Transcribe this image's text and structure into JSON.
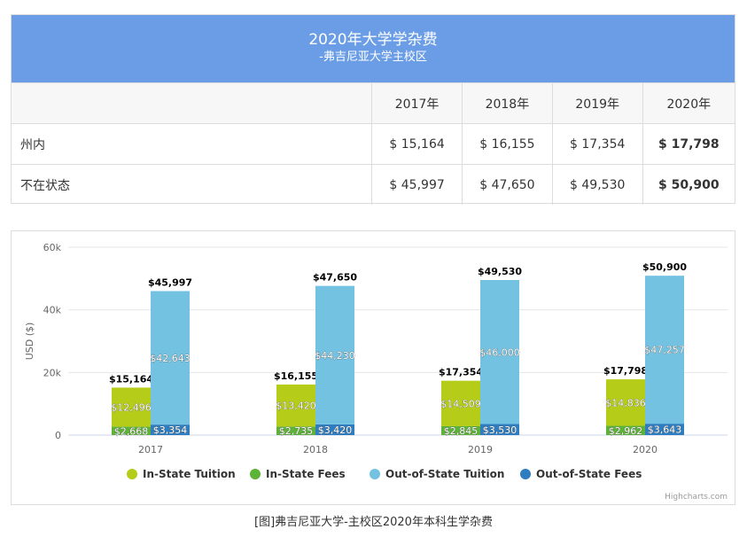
{
  "table": {
    "title": "2020年大学学杂费",
    "subtitle": "-弗吉尼亚大学主校区",
    "years": [
      "2017年",
      "2018年",
      "2019年",
      "2020年"
    ],
    "rows": [
      {
        "label": "州内",
        "values": [
          "$ 15,164",
          "$ 16,155",
          "$ 17,354",
          "$ 17,798"
        ]
      },
      {
        "label": "不在状态",
        "values": [
          "$ 45,997",
          "$ 47,650",
          "$ 49,530",
          "$ 50,900"
        ]
      }
    ]
  },
  "chart_data": {
    "type": "bar",
    "stacked": true,
    "categories": [
      "2017",
      "2018",
      "2019",
      "2020"
    ],
    "ylabel": "USD ($)",
    "ylim": [
      0,
      60000
    ],
    "yticks": [
      0,
      20000,
      40000,
      60000
    ],
    "ytick_labels": [
      "0",
      "20k",
      "40k",
      "60k"
    ],
    "grid": true,
    "legend_position": "bottom",
    "credits": "Highcharts.com",
    "series": [
      {
        "name": "In-State Tuition",
        "stack": "in",
        "color": "#b5cc18",
        "values": [
          12496,
          13420,
          14509,
          14836
        ],
        "labels": [
          "$12,496",
          "$13,420",
          "$14,509",
          "$14,836"
        ]
      },
      {
        "name": "In-State Fees",
        "stack": "in",
        "color": "#5cb336",
        "values": [
          2668,
          2735,
          2845,
          2962
        ],
        "labels": [
          "$2,668",
          "$2,735",
          "$2,845",
          "$2,962"
        ]
      },
      {
        "name": "Out-of-State Tuition",
        "stack": "out",
        "color": "#74c2e1",
        "values": [
          42643,
          44230,
          46000,
          47257
        ],
        "labels": [
          "$42,643",
          "$44,230",
          "$46,000",
          "$47,257"
        ]
      },
      {
        "name": "Out-of-State Fees",
        "stack": "out",
        "color": "#2e7dc0",
        "values": [
          3354,
          3420,
          3530,
          3643
        ],
        "labels": [
          "$3,354",
          "$3,420",
          "$3,530",
          "$3,643"
        ]
      }
    ],
    "totals": {
      "in": [
        "$15,164",
        "$16,155",
        "$17,354",
        "$17,798"
      ],
      "out": [
        "$45,997",
        "$47,650",
        "$49,530",
        "$50,900"
      ]
    }
  },
  "caption": "[图]弗吉尼亚大学-主校区2020年本科生学杂费"
}
